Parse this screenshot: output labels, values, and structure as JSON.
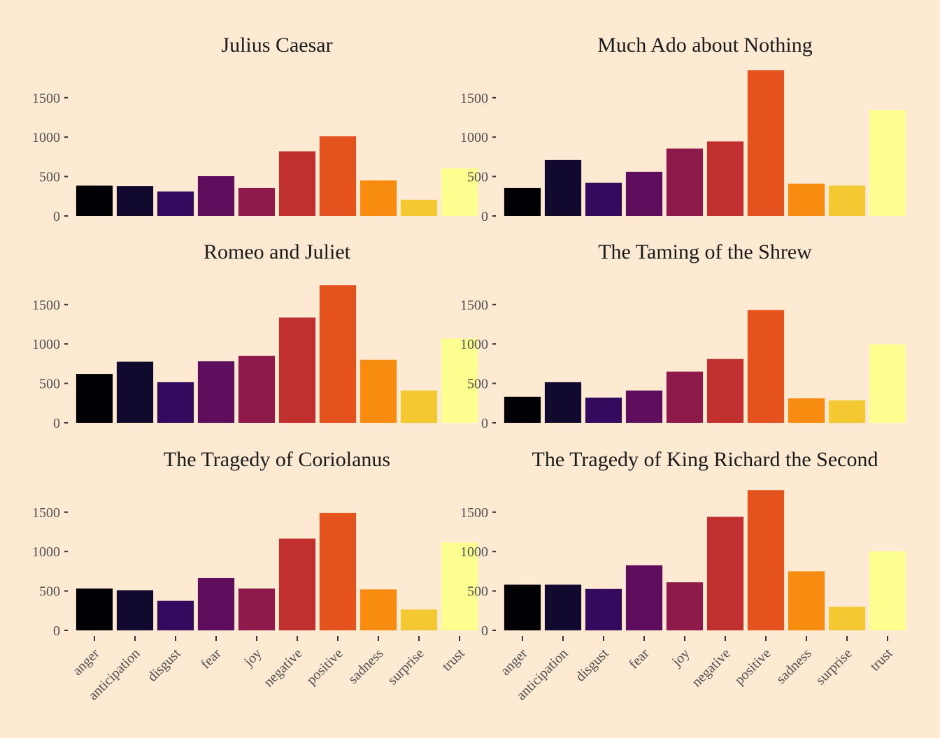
{
  "background": "#feead3",
  "colors": [
    "#000004",
    "#120a2e",
    "#330a5e",
    "#5f0d5d",
    "#8e1a4c",
    "#c0302f",
    "#e4521e",
    "#f78c10",
    "#f4c832",
    "#fcfe8f"
  ],
  "chart_data": [
    {
      "type": "bar",
      "title": "Julius Caesar",
      "categories": [
        "anger",
        "anticipation",
        "disgust",
        "fear",
        "joy",
        "negative",
        "positive",
        "sadness",
        "surprise",
        "trust"
      ],
      "values": [
        385,
        380,
        310,
        505,
        355,
        820,
        1010,
        450,
        205,
        605
      ],
      "ylim": [
        0,
        1850
      ],
      "yticks": [
        0,
        500,
        1000,
        1500
      ],
      "xlabel": "",
      "ylabel": "",
      "legend": "none",
      "grid": false
    },
    {
      "type": "bar",
      "title": "Much Ado about Nothing",
      "categories": [
        "anger",
        "anticipation",
        "disgust",
        "fear",
        "joy",
        "negative",
        "positive",
        "sadness",
        "surprise",
        "trust"
      ],
      "values": [
        355,
        710,
        420,
        560,
        855,
        945,
        1850,
        410,
        385,
        1345
      ],
      "ylim": [
        0,
        1850
      ],
      "yticks": [
        0,
        500,
        1000,
        1500
      ],
      "xlabel": "",
      "ylabel": "",
      "legend": "none",
      "grid": false
    },
    {
      "type": "bar",
      "title": "Romeo and Juliet",
      "categories": [
        "anger",
        "anticipation",
        "disgust",
        "fear",
        "joy",
        "negative",
        "positive",
        "sadness",
        "surprise",
        "trust"
      ],
      "values": [
        620,
        775,
        515,
        780,
        850,
        1335,
        1745,
        800,
        410,
        1070
      ],
      "ylim": [
        0,
        1850
      ],
      "yticks": [
        0,
        500,
        1000,
        1500
      ],
      "xlabel": "",
      "ylabel": "",
      "legend": "none",
      "grid": false
    },
    {
      "type": "bar",
      "title": "The Taming of the Shrew",
      "categories": [
        "anger",
        "anticipation",
        "disgust",
        "fear",
        "joy",
        "negative",
        "positive",
        "sadness",
        "surprise",
        "trust"
      ],
      "values": [
        330,
        515,
        320,
        410,
        650,
        810,
        1430,
        310,
        285,
        995
      ],
      "ylim": [
        0,
        1850
      ],
      "yticks": [
        0,
        500,
        1000,
        1500
      ],
      "xlabel": "",
      "ylabel": "",
      "legend": "none",
      "grid": false
    },
    {
      "type": "bar",
      "title": "The Tragedy of Coriolanus",
      "categories": [
        "anger",
        "anticipation",
        "disgust",
        "fear",
        "joy",
        "negative",
        "positive",
        "sadness",
        "surprise",
        "trust"
      ],
      "values": [
        530,
        510,
        375,
        665,
        530,
        1165,
        1490,
        520,
        265,
        1115
      ],
      "ylim": [
        0,
        1850
      ],
      "yticks": [
        0,
        500,
        1000,
        1500
      ],
      "xlabel": "",
      "ylabel": "",
      "legend": "none",
      "grid": false
    },
    {
      "type": "bar",
      "title": "The Tragedy of King Richard the Second",
      "categories": [
        "anger",
        "anticipation",
        "disgust",
        "fear",
        "joy",
        "negative",
        "positive",
        "sadness",
        "surprise",
        "trust"
      ],
      "values": [
        580,
        580,
        525,
        825,
        610,
        1440,
        1780,
        750,
        300,
        1005
      ],
      "ylim": [
        0,
        1850
      ],
      "yticks": [
        0,
        500,
        1000,
        1500
      ],
      "xlabel": "",
      "ylabel": "",
      "legend": "none",
      "grid": false
    }
  ]
}
